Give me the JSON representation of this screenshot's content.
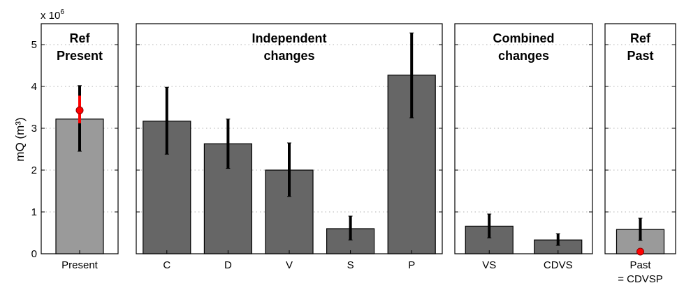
{
  "chart_data": {
    "type": "bar",
    "ylabel": "mQ (m³)",
    "ylim": [
      0,
      5.5
    ],
    "y_ticks": [
      0,
      1,
      2,
      3,
      4,
      5
    ],
    "y_tick_labels": [
      "0",
      "1",
      "2",
      "3",
      "4",
      "5"
    ],
    "y_multiplier_label": "x 10",
    "y_multiplier_exponent": "6",
    "grid": "horizontal dotted",
    "colors": {
      "ref_bar": "#9a9a9a",
      "change_bar": "#666666",
      "error_bar": "#000000",
      "ref_marker": "#ff0000"
    },
    "panels": [
      {
        "title_lines": [
          "Ref",
          "Present"
        ],
        "bar_color": "#9a9a9a",
        "categories": [
          "Present"
        ],
        "category_lines": [
          [
            "Present"
          ]
        ],
        "values": [
          3.22
        ],
        "err_low": [
          2.45
        ],
        "err_high": [
          4.02
        ],
        "ref_marker": 3.43,
        "ref_range": [
          3.12,
          3.78
        ]
      },
      {
        "title_lines": [
          "Independent",
          "changes"
        ],
        "bar_color": "#666666",
        "categories": [
          "C",
          "D",
          "V",
          "S",
          "P"
        ],
        "category_lines": [
          [
            "C"
          ],
          [
            "D"
          ],
          [
            "V"
          ],
          [
            "S"
          ],
          [
            "P"
          ]
        ],
        "values": [
          3.17,
          2.63,
          2.0,
          0.6,
          4.27
        ],
        "err_low": [
          2.38,
          2.04,
          1.37,
          0.33,
          3.25
        ],
        "err_high": [
          3.98,
          3.22,
          2.65,
          0.9,
          5.28
        ]
      },
      {
        "title_lines": [
          "Combined",
          "changes"
        ],
        "bar_color": "#666666",
        "categories": [
          "VS",
          "CDVS"
        ],
        "category_lines": [
          [
            "VS"
          ],
          [
            "CDVS"
          ]
        ],
        "values": [
          0.66,
          0.33
        ],
        "err_low": [
          0.38,
          0.2
        ],
        "err_high": [
          0.95,
          0.48
        ]
      },
      {
        "title_lines": [
          "Ref",
          "Past"
        ],
        "bar_color": "#9a9a9a",
        "categories": [
          "Past = CDVSP"
        ],
        "category_lines": [
          [
            "Past",
            "= CDVSP"
          ]
        ],
        "values": [
          0.58
        ],
        "err_low": [
          0.32
        ],
        "err_high": [
          0.85
        ],
        "ref_marker": 0.05
      }
    ]
  }
}
